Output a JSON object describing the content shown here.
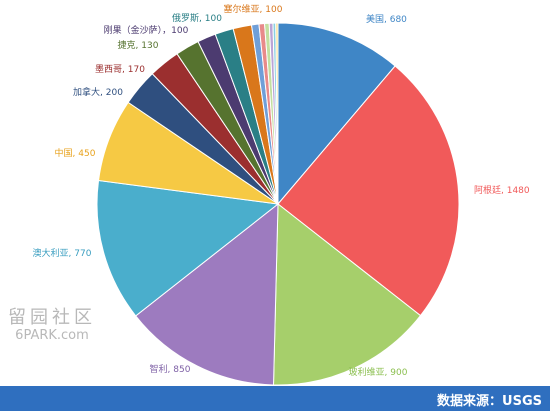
{
  "chart_data": {
    "type": "pie",
    "slices": [
      {
        "label": "美国, 680",
        "value": 680,
        "color": "#3f86c6"
      },
      {
        "label": "阿根廷, 1480",
        "value": 1480,
        "color": "#f15a5a"
      },
      {
        "label": "玻利维亚, 900",
        "value": 900,
        "color": "#a6cf6b"
      },
      {
        "label": "智利, 850",
        "value": 850,
        "color": "#9d7bbf"
      },
      {
        "label": "澳大利亚, 770",
        "value": 770,
        "color": "#4aaecc"
      },
      {
        "label": "中国, 450",
        "value": 450,
        "color": "#f6c944"
      },
      {
        "label": "加拿大, 200",
        "value": 200,
        "color": "#2f4f7f"
      },
      {
        "label": "墨西哥, 170",
        "value": 170,
        "color": "#9b2f2f"
      },
      {
        "label": "捷克, 130",
        "value": 130,
        "color": "#56732f"
      },
      {
        "label": "刚果（金沙萨），100",
        "value": 100,
        "color": "#4c3b70"
      },
      {
        "label": "俄罗斯, 100",
        "value": 100,
        "color": "#2a7f86"
      },
      {
        "label": "塞尔维亚, 100",
        "value": 100,
        "color": "#d9771b"
      },
      {
        "label": "",
        "value": 40,
        "color": "#6f9fd8"
      },
      {
        "label": "",
        "value": 30,
        "color": "#e88a8a"
      },
      {
        "label": "",
        "value": 25,
        "color": "#c3dfa0"
      },
      {
        "label": "",
        "value": 20,
        "color": "#bba4d6"
      },
      {
        "label": "",
        "value": 15,
        "color": "#8ad0e2"
      },
      {
        "label": "",
        "value": 12,
        "color": "#f7dd8a"
      }
    ]
  },
  "watermark": {
    "line1": "留园社区",
    "line2": "6PARK.com"
  },
  "footer": {
    "source": "数据来源：USGS"
  }
}
